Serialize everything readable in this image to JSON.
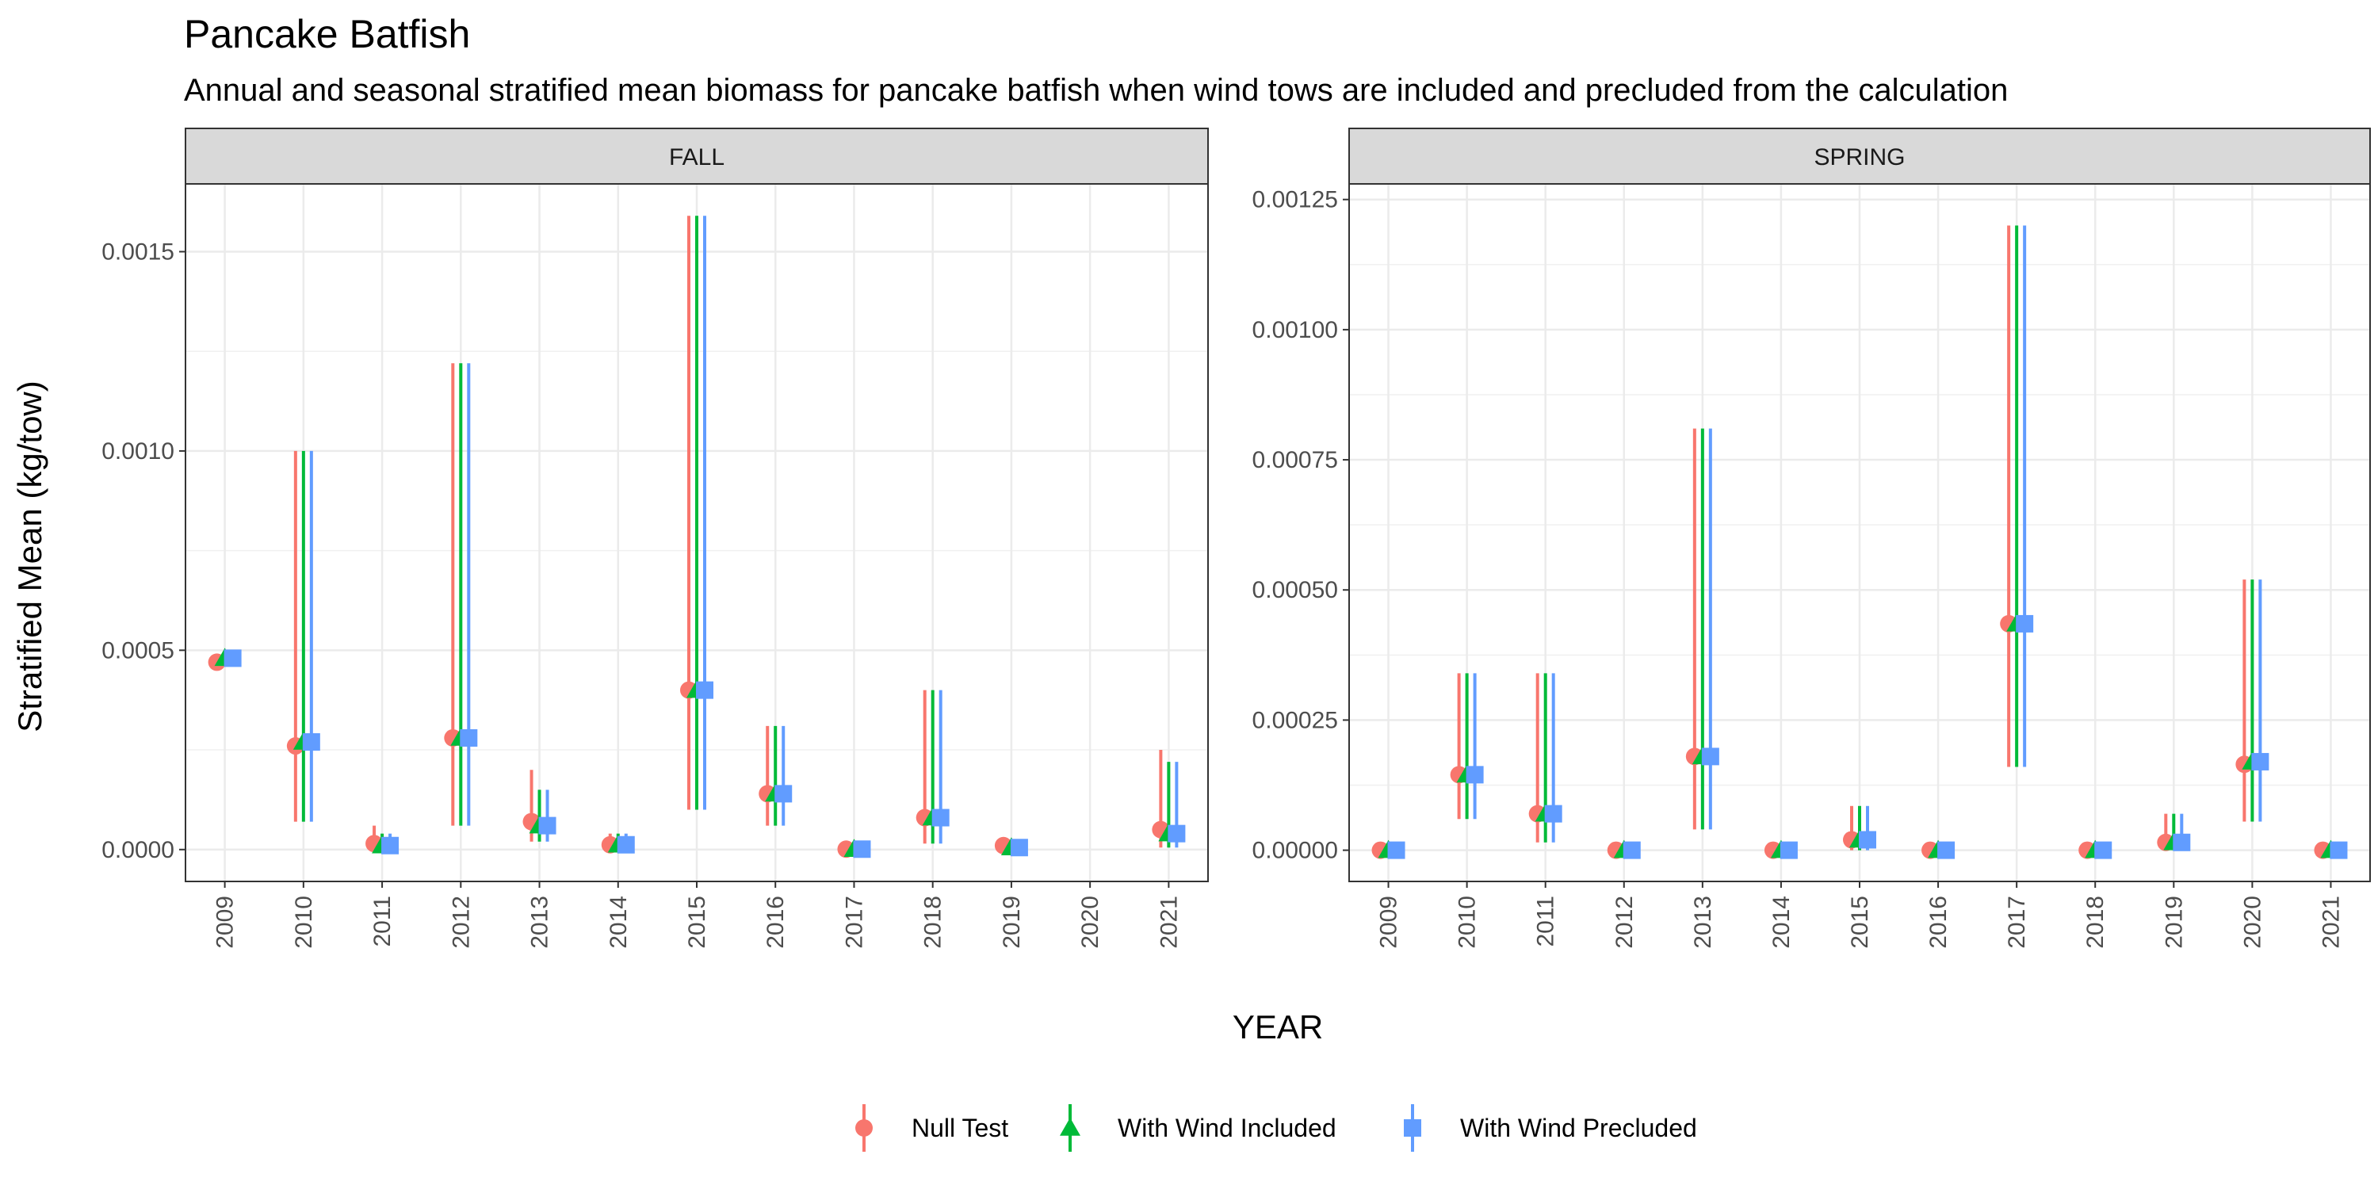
{
  "chart_data": {
    "type": "scatter",
    "title": "Pancake Batfish",
    "subtitle": "Annual and seasonal stratified mean biomass for pancake batfish when wind tows are included and precluded from the calculation",
    "xlabel": "YEAR",
    "ylabel": "Stratified Mean (kg/tow)",
    "grid": true,
    "legend_position": "bottom",
    "series_styles": [
      {
        "name": "Null Test",
        "color": "#F8766D",
        "shape": "circle"
      },
      {
        "name": "With Wind Included",
        "color": "#00BA38",
        "shape": "triangle"
      },
      {
        "name": "With Wind Precluded",
        "color": "#619CFF",
        "shape": "square"
      }
    ],
    "facets": [
      {
        "label": "FALL",
        "x": [
          "2009",
          "2010",
          "2011",
          "2012",
          "2013",
          "2014",
          "2015",
          "2016",
          "2017",
          "2018",
          "2019",
          "2020",
          "2021"
        ],
        "ylim": [
          -8e-05,
          0.00167
        ],
        "y_ticks": [
          0.0,
          0.0005,
          0.001,
          0.0015
        ],
        "y_tick_labels": [
          "0.0000",
          "0.0005",
          "0.0010",
          "0.0015"
        ],
        "series": [
          {
            "name": "Null Test",
            "values": [
              0.00047,
              0.00026,
              1.5e-05,
              0.00028,
              7e-05,
              1.2e-05,
              0.0004,
              0.00014,
              1e-06,
              8e-05,
              1e-05,
              null,
              5e-05
            ],
            "lower": [
              0.00047,
              7e-05,
              0.0,
              6e-05,
              2e-05,
              0.0,
              0.0001,
              6e-05,
              0.0,
              1.5e-05,
              0.0,
              null,
              5e-06
            ],
            "upper": [
              0.00047,
              0.001,
              6e-05,
              0.00122,
              0.0002,
              4e-05,
              0.00159,
              0.00031,
              5e-06,
              0.0004,
              1.5e-05,
              null,
              0.00025
            ]
          },
          {
            "name": "With Wind Included",
            "values": [
              0.00048,
              0.00027,
              1e-05,
              0.00028,
              6e-05,
              1.2e-05,
              0.0004,
              0.00014,
              1e-06,
              8e-05,
              5e-06,
              null,
              4e-05
            ],
            "lower": [
              0.00048,
              7e-05,
              0.0,
              6e-05,
              2e-05,
              0.0,
              0.0001,
              6e-05,
              0.0,
              1.5e-05,
              0.0,
              null,
              5e-06
            ],
            "upper": [
              0.00048,
              0.001,
              4e-05,
              0.00122,
              0.00015,
              4e-05,
              0.00159,
              0.00031,
              5e-06,
              0.0004,
              1e-05,
              null,
              0.00022
            ]
          },
          {
            "name": "With Wind Precluded",
            "values": [
              0.00048,
              0.00027,
              1e-05,
              0.00028,
              6e-05,
              1.2e-05,
              0.0004,
              0.00014,
              1e-06,
              8e-05,
              5e-06,
              null,
              4e-05
            ],
            "lower": [
              0.00048,
              7e-05,
              0.0,
              6e-05,
              2e-05,
              0.0,
              0.0001,
              6e-05,
              0.0,
              1.5e-05,
              0.0,
              null,
              5e-06
            ],
            "upper": [
              0.00048,
              0.001,
              4e-05,
              0.00122,
              0.00015,
              4e-05,
              0.00159,
              0.00031,
              5e-06,
              0.0004,
              1e-05,
              null,
              0.00022
            ]
          }
        ]
      },
      {
        "label": "SPRING",
        "x": [
          "2009",
          "2010",
          "2011",
          "2012",
          "2013",
          "2014",
          "2015",
          "2016",
          "2017",
          "2018",
          "2019",
          "2020",
          "2021"
        ],
        "ylim": [
          -6e-05,
          0.00128
        ],
        "y_ticks": [
          0.0,
          0.00025,
          0.0005,
          0.00075,
          0.001,
          0.00125
        ],
        "y_tick_labels": [
          "0.00000",
          "0.00025",
          "0.00050",
          "0.00075",
          "0.00100",
          "0.00125"
        ],
        "series": [
          {
            "name": "Null Test",
            "values": [
              0.0,
              0.000145,
              7e-05,
              0.0,
              0.00018,
              0.0,
              2e-05,
              0.0,
              0.000435,
              0.0,
              1.5e-05,
              0.000165,
              0.0
            ],
            "lower": [
              0.0,
              6e-05,
              1.5e-05,
              0.0,
              4e-05,
              0.0,
              0.0,
              0.0,
              0.00016,
              0.0,
              0.0,
              5.5e-05,
              0.0
            ],
            "upper": [
              0.0,
              0.00034,
              0.00034,
              0.0,
              0.00081,
              0.0,
              8.5e-05,
              0.0,
              0.0012,
              0.0,
              7e-05,
              0.00052,
              0.0
            ]
          },
          {
            "name": "With Wind Included",
            "values": [
              0.0,
              0.000145,
              7e-05,
              0.0,
              0.00018,
              0.0,
              2e-05,
              0.0,
              0.000435,
              0.0,
              1.5e-05,
              0.00017,
              0.0
            ],
            "lower": [
              0.0,
              6e-05,
              1.5e-05,
              0.0,
              4e-05,
              0.0,
              0.0,
              0.0,
              0.00016,
              0.0,
              0.0,
              5.5e-05,
              0.0
            ],
            "upper": [
              0.0,
              0.00034,
              0.00034,
              0.0,
              0.00081,
              0.0,
              8.5e-05,
              0.0,
              0.0012,
              0.0,
              7e-05,
              0.00052,
              0.0
            ]
          },
          {
            "name": "With Wind Precluded",
            "values": [
              0.0,
              0.000145,
              7e-05,
              0.0,
              0.00018,
              0.0,
              2e-05,
              0.0,
              0.000435,
              0.0,
              1.5e-05,
              0.00017,
              0.0
            ],
            "lower": [
              0.0,
              6e-05,
              1.5e-05,
              0.0,
              4e-05,
              0.0,
              0.0,
              0.0,
              0.00016,
              0.0,
              0.0,
              5.5e-05,
              0.0
            ],
            "upper": [
              0.0,
              0.00034,
              0.00034,
              0.0,
              0.00081,
              0.0,
              8.5e-05,
              0.0,
              0.0012,
              0.0,
              7e-05,
              0.00052,
              0.0
            ]
          }
        ]
      }
    ]
  }
}
